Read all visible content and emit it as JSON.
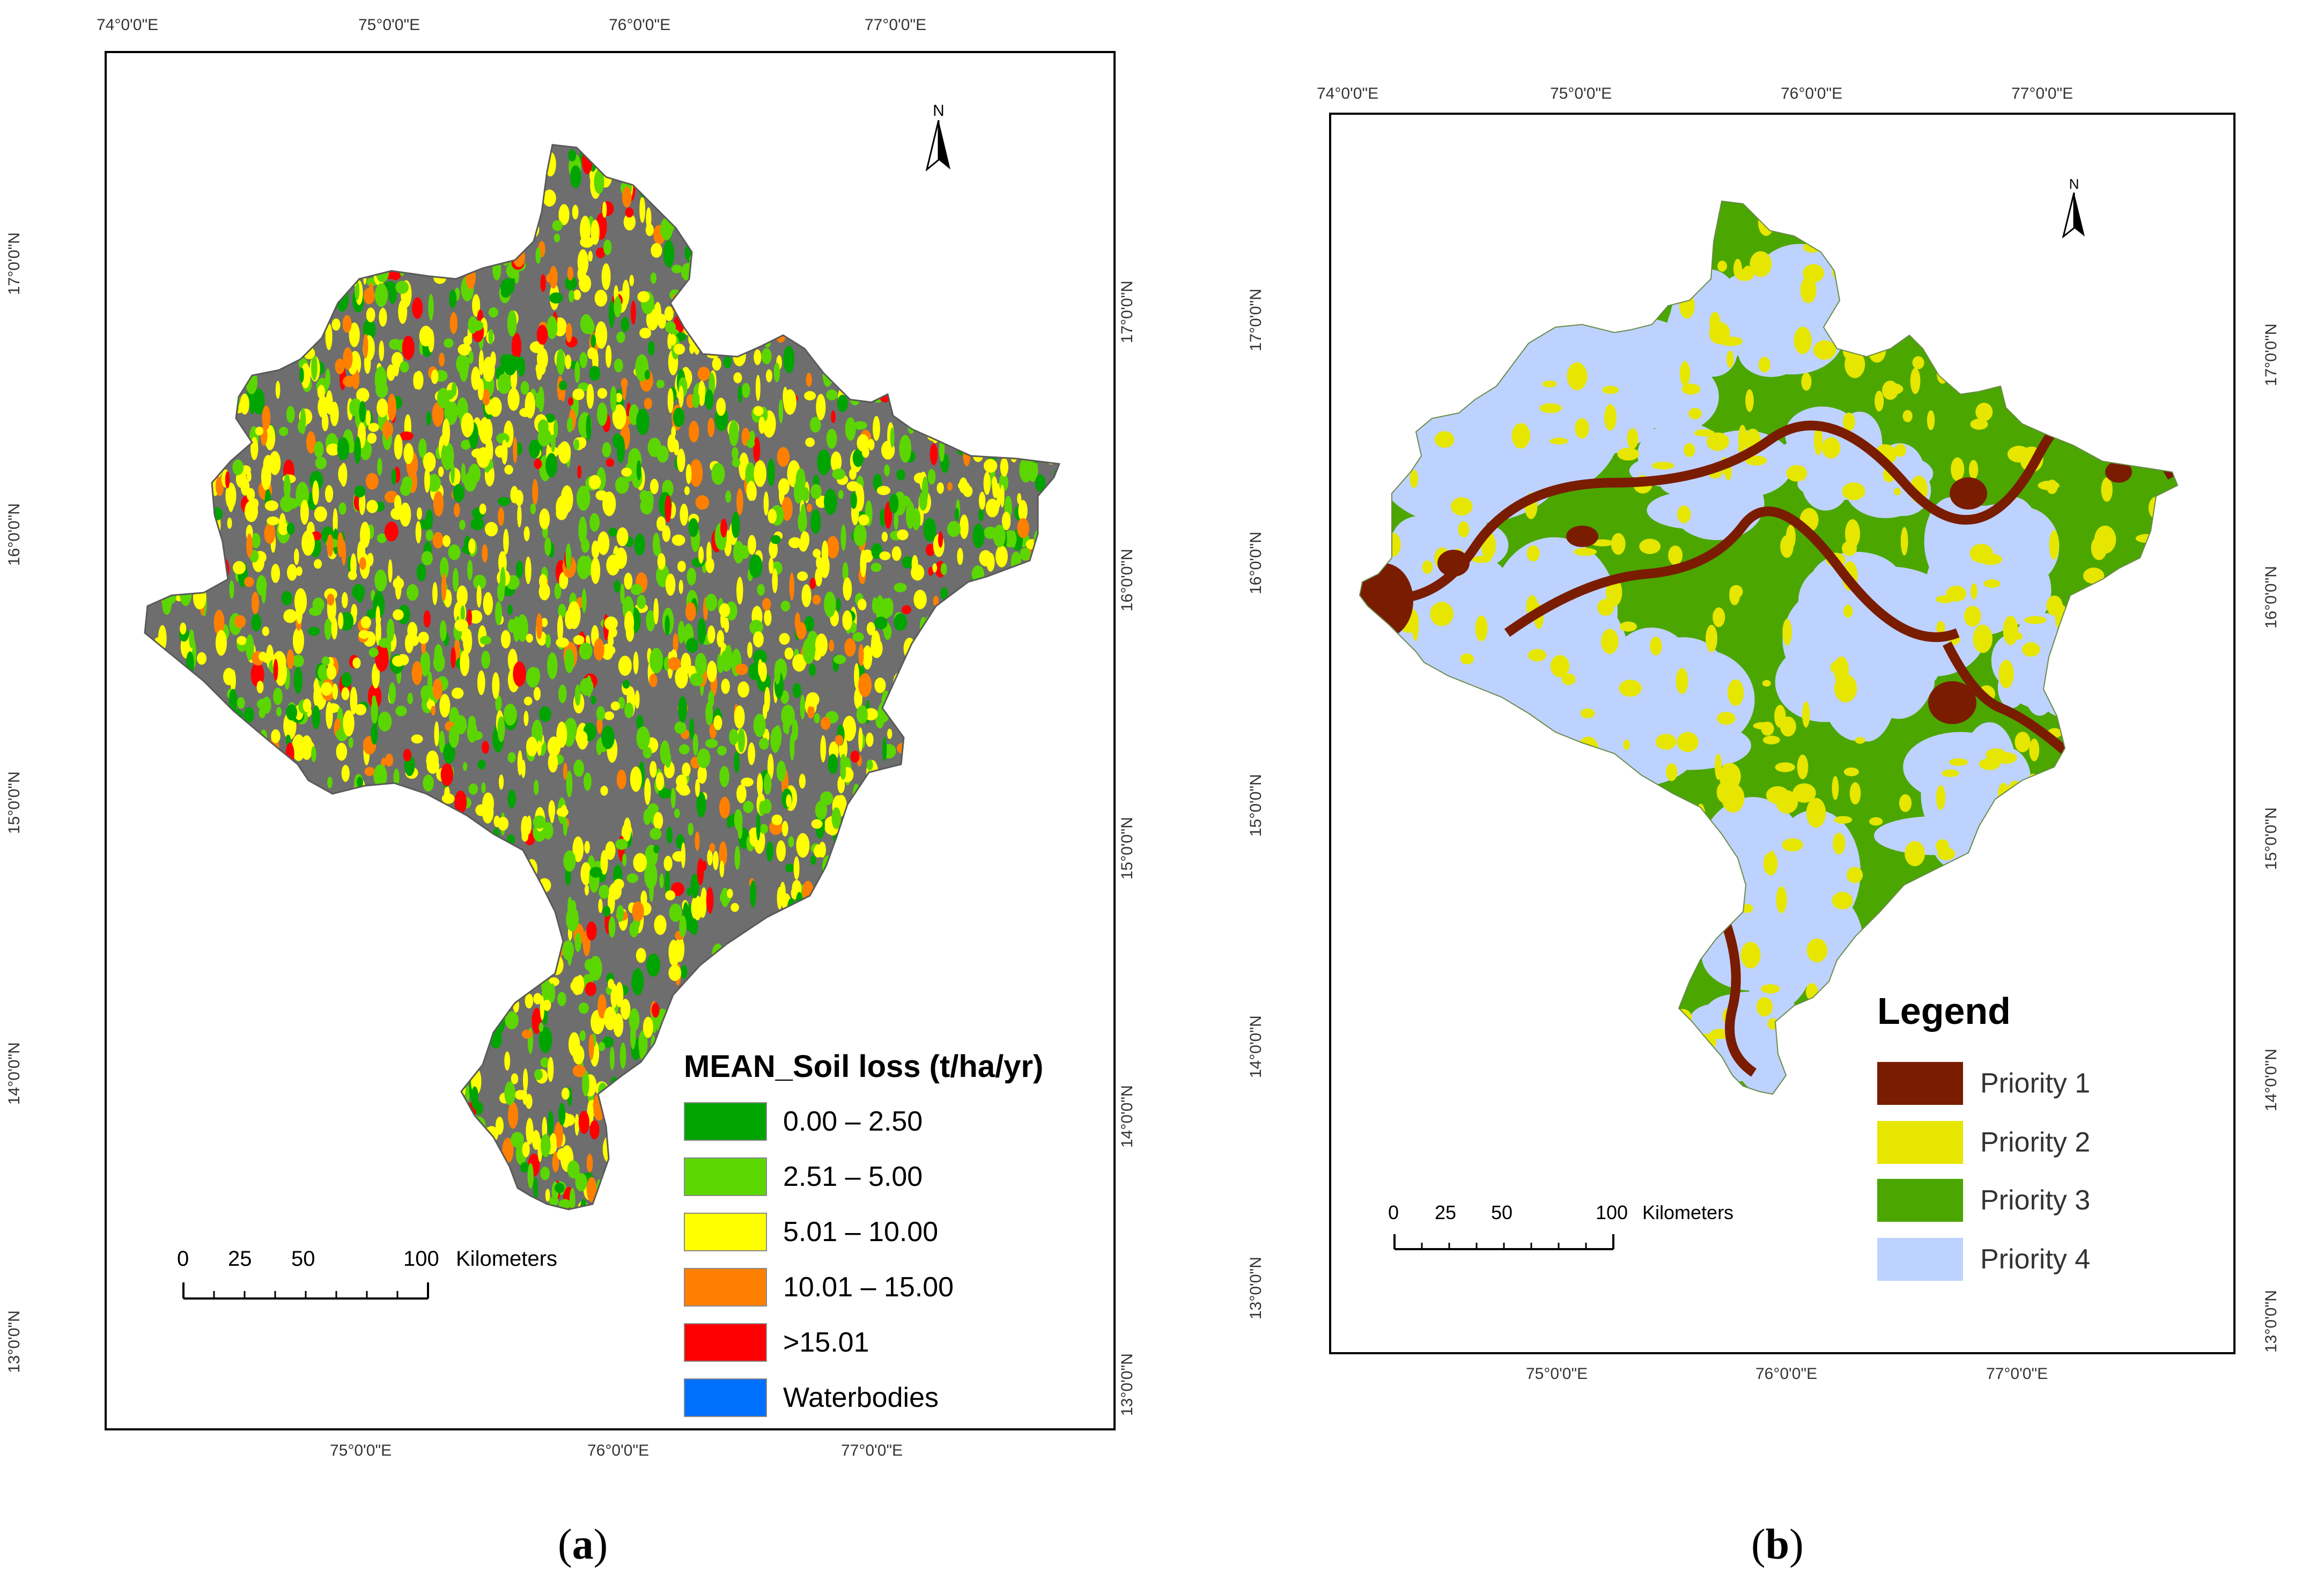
{
  "panel_a": {
    "caption_prefix": "(",
    "caption_letter": "a",
    "caption_suffix": ")",
    "top_ticks": [
      "74°0'0\"E",
      "75°0'0\"E",
      "76°0'0\"E",
      "77°0'0\"E"
    ],
    "bottom_ticks": [
      "75°0'0\"E",
      "76°0'0\"E",
      "77°0'0\"E"
    ],
    "left_ticks": [
      "17°0'0\"N",
      "16°0'0\"N",
      "15°0'0\"N",
      "14°0'0\"N",
      "13°0'0\"N"
    ],
    "right_ticks": [
      "17°0'0\"N",
      "16°0'0\"N",
      "15°0'0\"N",
      "14°0'0\"N",
      "13°0'0\"N"
    ],
    "north_label": "N",
    "legend": {
      "title": "MEAN_Soil loss (t/ha/yr)",
      "items": [
        {
          "label": "0.00 – 2.50",
          "color": "#00a400"
        },
        {
          "label": "2.51 – 5.00",
          "color": "#5cd600"
        },
        {
          "label": "5.01 – 10.00",
          "color": "#ffff00"
        },
        {
          "label": "10.01 – 15.00",
          "color": "#ff8000"
        },
        {
          "label": ">15.01",
          "color": "#ff0000"
        },
        {
          "label": "Waterbodies",
          "color": "#0070ff"
        }
      ]
    },
    "scale": {
      "labels": [
        "0",
        "25",
        "50",
        "100"
      ],
      "unit": "Kilometers"
    },
    "base_color": "#6e6e6e"
  },
  "panel_b": {
    "caption_prefix": "(",
    "caption_letter": "b",
    "caption_suffix": ")",
    "top_ticks": [
      "74°0'0\"E",
      "75°0'0\"E",
      "76°0'0\"E",
      "77°0'0\"E"
    ],
    "bottom_ticks": [
      "75°0'0\"E",
      "76°0'0\"E",
      "77°0'0\"E"
    ],
    "left_ticks": [
      "17°0'0\"N",
      "16°0'0\"N",
      "15°0'0\"N",
      "14°0'0\"N",
      "13°0'0\"N"
    ],
    "right_ticks": [
      "17°0'0\"N",
      "16°0'0\"N",
      "15°0'0\"N",
      "14°0'0\"N",
      "13°0'0\"N"
    ],
    "north_label": "N",
    "legend": {
      "title": "Legend",
      "items": [
        {
          "label": "Priority 1",
          "color": "#7a1c00"
        },
        {
          "label": "Priority 2",
          "color": "#e6e600"
        },
        {
          "label": "Priority 3",
          "color": "#4ca600"
        },
        {
          "label": "Priority 4",
          "color": "#bed2ff"
        }
      ]
    },
    "scale": {
      "labels": [
        "0",
        "25",
        "50",
        "100"
      ],
      "unit": "Kilometers"
    }
  }
}
